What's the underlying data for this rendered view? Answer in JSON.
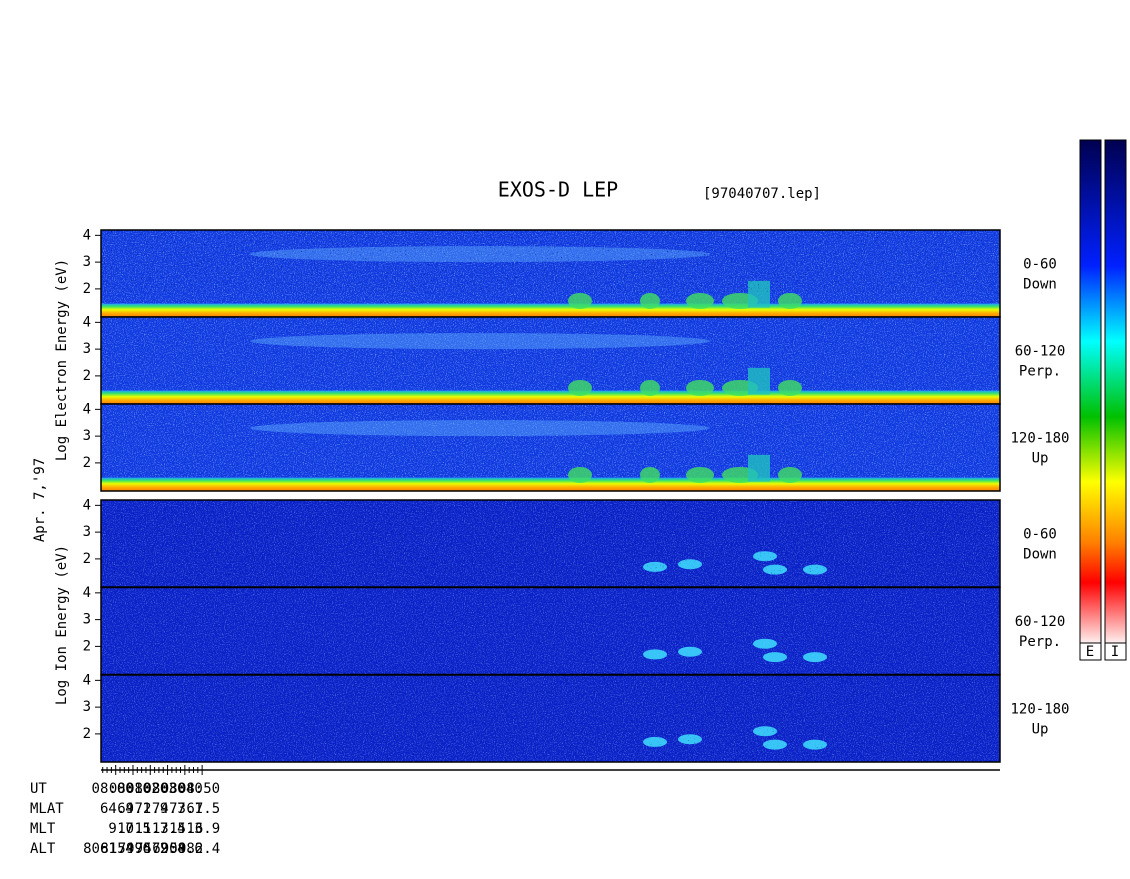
{
  "title": "EXOS-D LEP",
  "file": "[97040707.lep]",
  "date": "Apr. 7,'97",
  "electron_axis_label": "Log Electron Energy (eV)",
  "ion_axis_label": "Log Ion Energy (eV)",
  "energy_range": [
    0.95,
    4.2
  ],
  "panels": [
    {
      "species": "electron",
      "yticks": [
        2,
        3,
        4
      ],
      "pitch": "0-60",
      "direction": "Down"
    },
    {
      "species": "electron",
      "yticks": [
        2,
        3,
        4
      ],
      "pitch": "60-120",
      "direction": "Perp."
    },
    {
      "species": "electron",
      "yticks": [
        2,
        3,
        4
      ],
      "pitch": "120-180",
      "direction": "Up"
    },
    {
      "species": "ion",
      "yticks": [
        2,
        3,
        4
      ],
      "pitch": "0-60",
      "direction": "Down"
    },
    {
      "species": "ion",
      "yticks": [
        2,
        3,
        4
      ],
      "pitch": "60-120",
      "direction": "Perp."
    },
    {
      "species": "ion",
      "yticks": [
        2,
        3,
        4
      ],
      "pitch": "120-180",
      "direction": "Up"
    }
  ],
  "time_axis": {
    "range": [
      471.5,
      991.5
    ],
    "ticks": [
      {
        "value": 480,
        "label": "08:00"
      },
      {
        "value": 490,
        "label": "08:10"
      },
      {
        "value": 500,
        "label": "08:20"
      },
      {
        "value": 510,
        "label": "08:30"
      },
      {
        "value": 520,
        "label": "08:40"
      },
      {
        "value": 530,
        "label": "08:50"
      }
    ],
    "minor_ticks": [
      472.5,
      475,
      477.5,
      482.5,
      485,
      487.5,
      492.5,
      495,
      497.5,
      502.5,
      505,
      507.5,
      512.5,
      515,
      517.5,
      522.5,
      525,
      527.5
    ]
  },
  "orbit": {
    "labels": [
      "UT",
      "MLAT",
      "MLT",
      "ALT"
    ],
    "rows": [
      [
        64.4,
        69.1,
        72.9,
        74.7,
        73.1,
        67.5
      ],
      [
        9.7,
        10.5,
        11.7,
        13.4,
        15.3,
        16.9
      ],
      [
        8061.4,
        8154.6,
        7994.2,
        7579.4,
        6908.6,
        5982.4
      ]
    ]
  },
  "colorbar_labels": [
    "E",
    "I"
  ]
}
